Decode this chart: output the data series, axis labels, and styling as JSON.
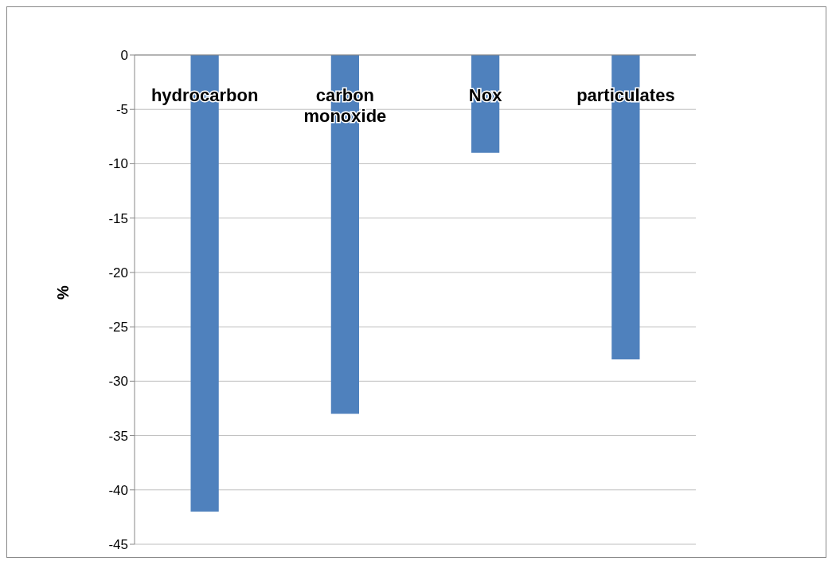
{
  "chart_data": {
    "type": "bar",
    "categories": [
      "hydrocarbon",
      "carbon monoxide",
      "Nox",
      "particulates"
    ],
    "values": [
      -42,
      -33,
      -9,
      -28
    ],
    "color": "#4f81bd",
    "ylabel": "%",
    "ylim": [
      -45,
      0
    ],
    "yticks": [
      -45,
      -40,
      -35,
      -30,
      -25,
      -20,
      -15,
      -10,
      -5,
      0
    ],
    "grid": "y",
    "legend": false
  }
}
